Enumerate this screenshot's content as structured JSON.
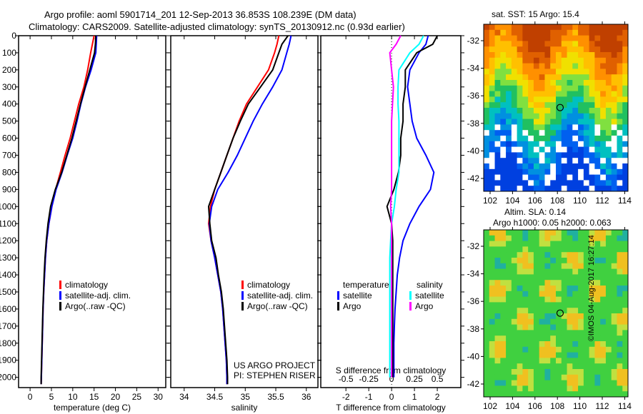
{
  "title_line1": "Argo profile: aoml 5901714_201 12-Sep-2013 36.853S 108.239E (DM data)",
  "title_line2": "Climatology: CARS2009. Satellite-adjusted climatology: synTS_20130912.nc (0.93d earlier)",
  "colors": {
    "climatology": "#ff0000",
    "satellite": "#0000ff",
    "argo": "#000000",
    "s_satellite": "#00ffff",
    "s_argo": "#ff00ff"
  },
  "chart_data": [
    {
      "type": "line",
      "name": "temperature",
      "xlabel": "temperature (deg C)",
      "ylabel": "depth",
      "ylim": [
        2060,
        0
      ],
      "xlim": [
        -2.7,
        31.8
      ],
      "xticks": [
        0,
        5,
        10,
        15,
        20,
        25,
        30
      ],
      "yticks": [
        0,
        100,
        200,
        300,
        400,
        500,
        600,
        700,
        800,
        900,
        1000,
        1100,
        1200,
        1300,
        1400,
        1500,
        1600,
        1700,
        1800,
        1900,
        2000
      ],
      "depth": [
        0,
        50,
        100,
        200,
        300,
        400,
        500,
        600,
        700,
        800,
        900,
        1000,
        1100,
        1200,
        1300,
        1400,
        1500,
        1600,
        1700,
        1800,
        1900,
        2000,
        2040
      ],
      "legend": [
        "climatology",
        "satellite-adj. clim.",
        "Argo(..raw -QC)"
      ],
      "series": [
        {
          "name": "climatology",
          "values": [
            15,
            14.6,
            14.2,
            13.5,
            12.6,
            11.4,
            10.4,
            9.4,
            8.2,
            7.1,
            6,
            5.1,
            4.4,
            3.9,
            3.6,
            3.4,
            3.2,
            3.05,
            2.95,
            2.85,
            2.75,
            2.65,
            2.6
          ]
        },
        {
          "name": "satellite-adj. clim.",
          "values": [
            15.6,
            15.5,
            15.4,
            14.3,
            13,
            11.9,
            11,
            10,
            8.7,
            7.5,
            6.1,
            5.1,
            4.4,
            3.9,
            3.6,
            3.4,
            3.2,
            3.05,
            2.95,
            2.85,
            2.75,
            2.65,
            2.6
          ]
        },
        {
          "name": "Argo(..raw -QC)",
          "values": [
            15.4,
            15.3,
            15.1,
            14,
            12.9,
            11.8,
            10.8,
            9.8,
            8.6,
            7.4,
            5.9,
            4.8,
            4.2,
            3.8,
            3.5,
            3.3,
            3.15,
            3.0,
            2.9,
            2.8,
            2.7,
            2.6,
            2.6
          ]
        }
      ]
    },
    {
      "type": "line",
      "name": "salinity",
      "xlabel": "salinity",
      "ylim": [
        2060,
        0
      ],
      "xlim": [
        33.78,
        36.19
      ],
      "xticks": [
        34,
        34.5,
        35,
        35.5,
        36
      ],
      "depth": [
        0,
        50,
        100,
        200,
        300,
        400,
        500,
        600,
        700,
        800,
        900,
        1000,
        1100,
        1200,
        1300,
        1400,
        1500,
        1600,
        1700,
        1800,
        1900,
        2000,
        2040
      ],
      "legend": [
        "climatology",
        "satellite-adj. clim.",
        "Argo(..raw -QC)"
      ],
      "series": [
        {
          "name": "climatology",
          "values": [
            35.55,
            35.52,
            35.48,
            35.38,
            35.2,
            35.02,
            34.9,
            34.8,
            34.7,
            34.6,
            34.5,
            34.43,
            34.4,
            34.44,
            34.5,
            34.55,
            34.6,
            34.63,
            34.65,
            34.67,
            34.69,
            34.7,
            34.7
          ]
        },
        {
          "name": "satellite-adj. clim.",
          "values": [
            35.75,
            35.72,
            35.68,
            35.6,
            35.45,
            35.28,
            35.13,
            35.0,
            34.87,
            34.72,
            34.55,
            34.45,
            34.41,
            34.44,
            34.5,
            34.55,
            34.6,
            34.63,
            34.65,
            34.67,
            34.69,
            34.7,
            34.7
          ]
        },
        {
          "name": "Argo(..raw -QC)",
          "values": [
            35.7,
            35.6,
            35.55,
            35.45,
            35.25,
            35.05,
            34.92,
            34.8,
            34.7,
            34.6,
            34.5,
            34.4,
            34.42,
            34.45,
            34.52,
            34.56,
            34.61,
            34.64,
            34.66,
            34.68,
            34.7,
            34.71,
            34.71
          ]
        }
      ]
    },
    {
      "type": "line",
      "name": "difference",
      "xlabel": "T difference from climatology",
      "x2label": "S difference from climatology",
      "ylim": [
        2060,
        0
      ],
      "xlim": [
        -3.1,
        3.03
      ],
      "xticks": [
        -2,
        -1,
        0,
        1,
        2
      ],
      "x2ticks": [
        "-0.5",
        "-0.25",
        "0",
        "0.25",
        "0.5"
      ],
      "depth": [
        0,
        50,
        100,
        200,
        300,
        400,
        500,
        600,
        700,
        800,
        900,
        1000,
        1100,
        1200,
        1300,
        1400,
        1500,
        1600,
        1700,
        1800,
        1900,
        2000
      ],
      "legend": {
        "temperature": "temperature",
        "salinity": "salinity",
        "t_sat": "satellite",
        "t_argo": "Argo",
        "s_sat": "satellite",
        "s_argo": "Argo"
      },
      "series": [
        {
          "name": "T satellite",
          "values": [
            1.6,
            1.5,
            1.2,
            0.8,
            0.7,
            0.8,
            0.9,
            1.1,
            1.5,
            1.85,
            1.7,
            1.2,
            0.8,
            0.5,
            0.35,
            0.25,
            0.2,
            0.15,
            0.12,
            0.1,
            0.1,
            0.1
          ]
        },
        {
          "name": "T Argo",
          "values": [
            2.0,
            1.8,
            1.1,
            0.6,
            0.6,
            0.5,
            0.5,
            0.4,
            0.4,
            0.3,
            0.1,
            -0.2,
            0.0,
            0.05,
            0.05,
            0.05,
            0.05,
            0.05,
            0.05,
            0.05,
            0.05,
            0.05
          ]
        },
        {
          "name": "S satellite",
          "values": [
            0.35,
            0.3,
            0.2,
            0.08,
            0.07,
            0.07,
            0.08,
            0.08,
            0.08,
            0.08,
            0.05,
            0.03,
            0.0,
            -0.01,
            -0.02,
            -0.02,
            -0.02,
            -0.02,
            -0.02,
            -0.02,
            -0.02,
            -0.02
          ]
        },
        {
          "name": "S Argo",
          "values": [
            0.1,
            0.05,
            -0.02,
            0.0,
            0.02,
            0.01,
            0.0,
            0.0,
            0.0,
            0.0,
            0.0,
            -0.01,
            0.0,
            0.0,
            0.0,
            0.0,
            0.0,
            0.0,
            0.0,
            0.0,
            0.0,
            0.0
          ]
        }
      ]
    }
  ],
  "maps": {
    "sst_title": "sat. SST: 15 Argo: 15.4",
    "sla_title1": "Altim. SLA: 0.14",
    "sla_title2": "Argo h1000: 0.05 h2000: 0.063",
    "lon_ticks": [
      "102",
      "104",
      "106",
      "108",
      "110",
      "112",
      "114"
    ],
    "lat_ticks": [
      "-32",
      "-34",
      "-36",
      "-38",
      "-40",
      "-42"
    ],
    "argo_lon": 108.239,
    "argo_lat": -36.853
  },
  "credits": {
    "project1": "US ARGO PROJECT",
    "project2": "PI: STEPHEN RISER",
    "stamp": "©IMOS 04-Aug-2017 16:27:14"
  }
}
